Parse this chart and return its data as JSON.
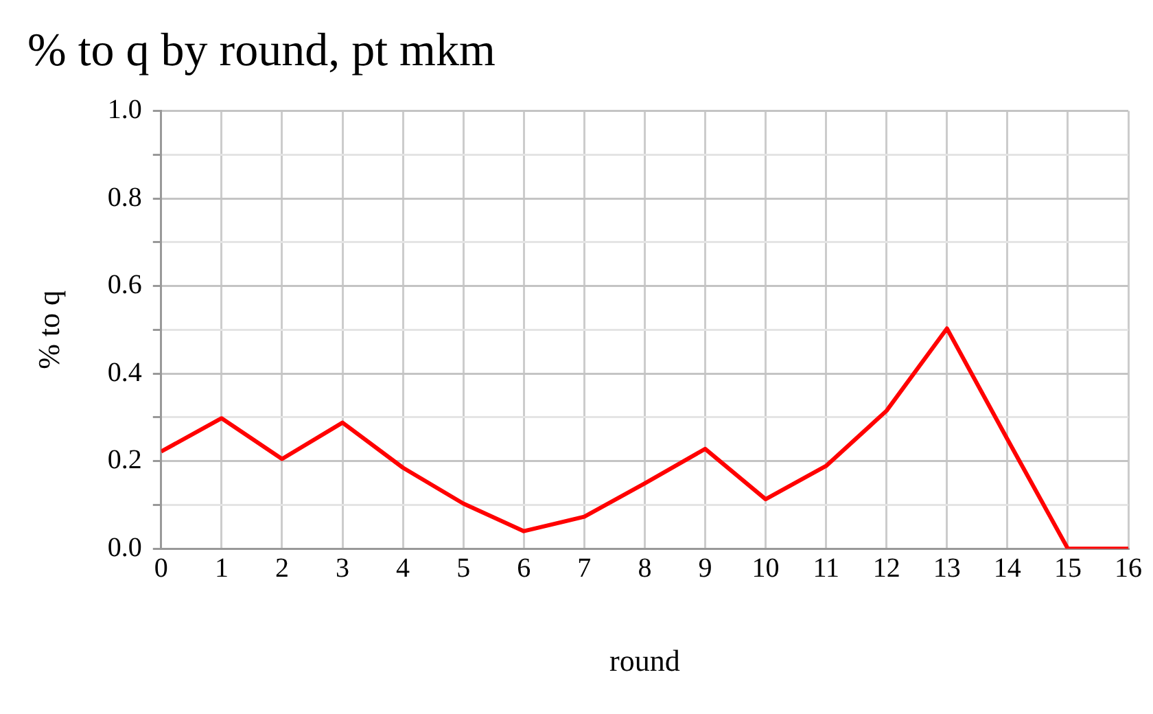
{
  "chart_data": {
    "type": "line",
    "title": "% to q by round, pt mkm",
    "xlabel": "round",
    "ylabel": "% to q",
    "x": [
      0,
      1,
      2,
      3,
      4,
      5,
      6,
      7,
      8,
      9,
      10,
      11,
      12,
      13,
      14,
      15,
      16
    ],
    "series": [
      {
        "color": "#ff0000",
        "values": [
          0.222,
          0.298,
          0.205,
          0.288,
          0.185,
          0.103,
          0.04,
          0.073,
          0.149,
          0.228,
          0.113,
          0.189,
          0.315,
          0.503,
          0.25,
          0.0,
          0.0
        ]
      }
    ],
    "xlim": [
      0,
      16
    ],
    "xticks": [
      0,
      1,
      2,
      3,
      4,
      5,
      6,
      7,
      8,
      9,
      10,
      11,
      12,
      13,
      14,
      15,
      16
    ],
    "ylim": [
      0,
      1
    ],
    "yticks": [
      {
        "value": 0,
        "label": "0.0"
      },
      {
        "value": 0.1,
        "label": null
      },
      {
        "value": 0.2,
        "label": "0.2"
      },
      {
        "value": 0.3,
        "label": null
      },
      {
        "value": 0.4,
        "label": "0.4"
      },
      {
        "value": 0.5,
        "label": null
      },
      {
        "value": 0.6,
        "label": "0.6"
      },
      {
        "value": 0.7,
        "label": null
      },
      {
        "value": 0.8,
        "label": "0.8"
      },
      {
        "value": 0.9,
        "label": null
      },
      {
        "value": 1,
        "label": "1.0"
      }
    ],
    "grid": true,
    "legend": false,
    "marker": "none",
    "line_style": "solid"
  }
}
